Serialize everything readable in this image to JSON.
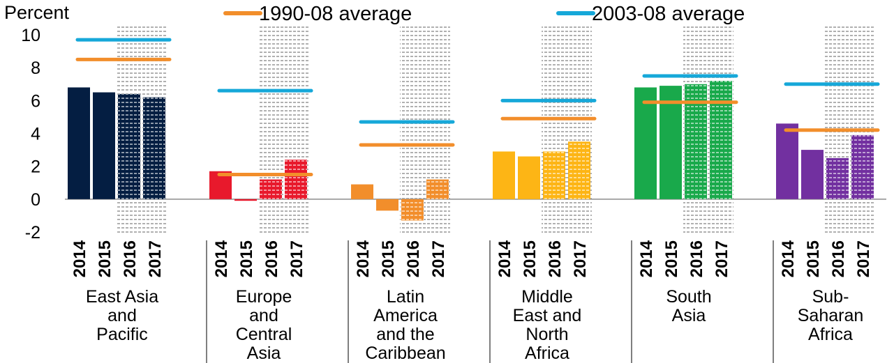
{
  "chart_data": {
    "type": "bar",
    "ylabel": "Percent",
    "ylim": [
      -2,
      10
    ],
    "yticks": [
      -2,
      0,
      2,
      4,
      6,
      8,
      10
    ],
    "years": [
      "2014",
      "2015",
      "2016",
      "2017"
    ],
    "forecast_years": [
      "2016",
      "2017"
    ],
    "legend": {
      "placement": "top",
      "items": [
        {
          "label": "1990-08 average",
          "color": "#F28E2B"
        },
        {
          "label": "2003-08 average",
          "color": "#16A8D9"
        }
      ]
    },
    "groups": [
      {
        "label": [
          "East Asia",
          "and",
          "Pacific"
        ],
        "color": "#041E42",
        "values": [
          6.8,
          6.5,
          6.4,
          6.2
        ],
        "avg_1990_08": 8.5,
        "avg_2003_08": 9.7
      },
      {
        "label": [
          "Europe",
          "and",
          "Central",
          "Asia"
        ],
        "color": "#E8192C",
        "values": [
          1.7,
          -0.1,
          1.2,
          2.4
        ],
        "avg_1990_08": 1.5,
        "avg_2003_08": 6.6
      },
      {
        "label": [
          "Latin",
          "America",
          "and the",
          "Caribbean"
        ],
        "color": "#F28E2B",
        "values": [
          0.9,
          -0.7,
          -1.3,
          1.2
        ],
        "avg_1990_08": 3.3,
        "avg_2003_08": 4.7
      },
      {
        "label": [
          "Middle",
          "East and",
          "North",
          "Africa"
        ],
        "color": "#FDB515",
        "values": [
          2.9,
          2.6,
          2.9,
          3.5
        ],
        "avg_1990_08": 4.9,
        "avg_2003_08": 6.0
      },
      {
        "label": [
          "South",
          "Asia"
        ],
        "color": "#19A94B",
        "values": [
          6.8,
          6.9,
          7.0,
          7.2
        ],
        "avg_1990_08": 5.9,
        "avg_2003_08": 7.5
      },
      {
        "label": [
          "Sub-",
          "Saharan",
          "Africa"
        ],
        "color": "#7230A0",
        "values": [
          4.6,
          3.0,
          2.5,
          3.9
        ],
        "avg_1990_08": 4.2,
        "avg_2003_08": 7.0
      }
    ]
  }
}
